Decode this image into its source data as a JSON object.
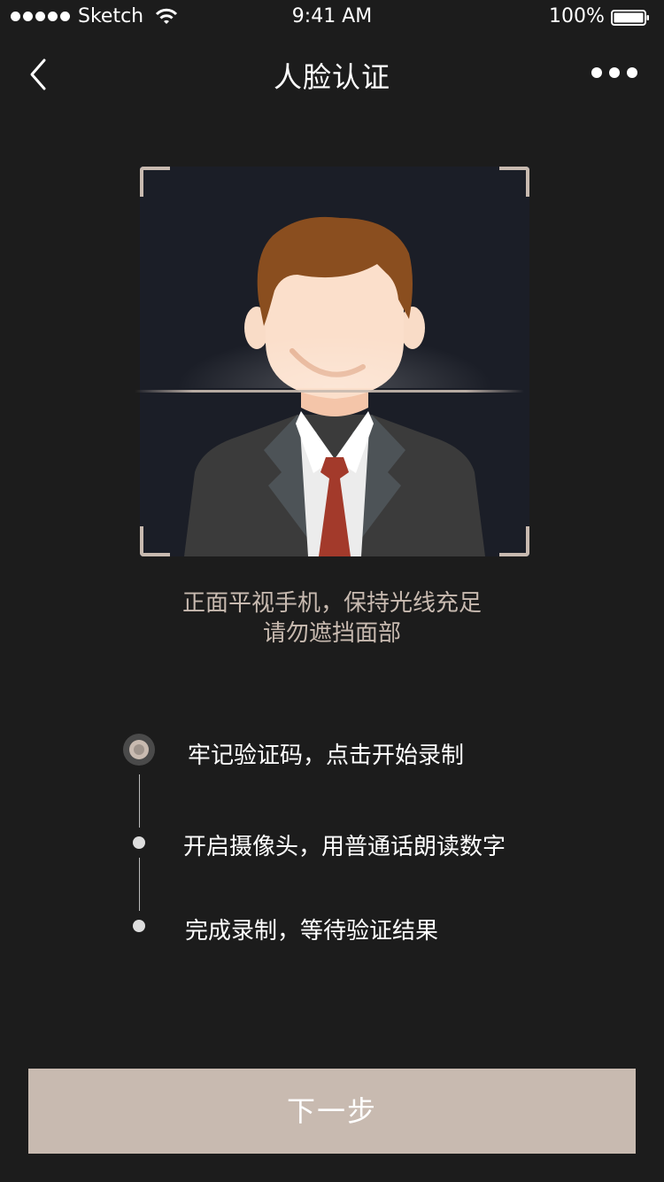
{
  "status_bar": {
    "carrier": "Sketch",
    "time": "9:41 AM",
    "battery": "100%"
  },
  "nav": {
    "title": "人脸认证",
    "back_icon": "chevron-left-icon",
    "more_icon": "more-horizontal-icon"
  },
  "face_frame": {
    "illustration": "avatar-illustration",
    "hint_line1": "正面平视手机，保持光线充足",
    "hint_line2": "请勿遮挡面部"
  },
  "steps": [
    {
      "label": "牢记验证码，点击开始录制",
      "active": true
    },
    {
      "label": "开启摄像头，用普通话朗读数字",
      "active": false
    },
    {
      "label": "完成录制，等待验证结果",
      "active": false
    }
  ],
  "next_button": {
    "label": "下一步"
  },
  "colors": {
    "background": "#1c1c1c",
    "accent": "#c8bab0",
    "frame_bg": "#1b1e27"
  }
}
